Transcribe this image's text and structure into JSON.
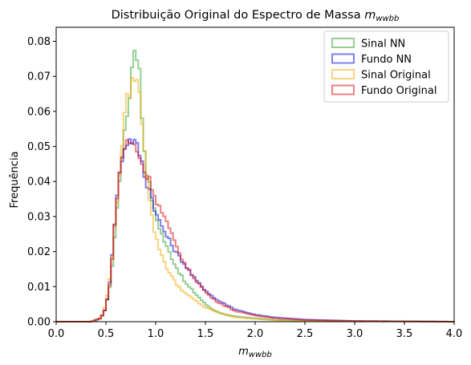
{
  "chart_data": {
    "type": "step-histogram",
    "title": "Distribuição Original do Espectro de Massa",
    "title_math": "m",
    "title_math_sub": "wwbb",
    "xlabel_main": "m",
    "xlabel_sub": "wwbb",
    "ylabel": "Frequência",
    "xlim": [
      0.0,
      4.0
    ],
    "ylim": [
      0.0,
      0.084
    ],
    "x_ticks": [
      "0.0",
      "0.5",
      "1.0",
      "1.5",
      "2.0",
      "2.5",
      "3.0",
      "3.5",
      "4.0"
    ],
    "y_ticks": [
      "0.00",
      "0.01",
      "0.02",
      "0.03",
      "0.04",
      "0.05",
      "0.06",
      "0.07",
      "0.08"
    ],
    "legend_position": "top-right",
    "series": [
      {
        "name": "Sinal NN",
        "color": "#2ca02c",
        "points": [
          [
            0.35,
            0.0
          ],
          [
            0.45,
            0.001
          ],
          [
            0.5,
            0.004
          ],
          [
            0.55,
            0.012
          ],
          [
            0.6,
            0.028
          ],
          [
            0.65,
            0.045
          ],
          [
            0.7,
            0.056
          ],
          [
            0.75,
            0.068
          ],
          [
            0.78,
            0.079
          ],
          [
            0.83,
            0.075
          ],
          [
            0.87,
            0.055
          ],
          [
            0.9,
            0.045
          ],
          [
            0.95,
            0.037
          ],
          [
            1.0,
            0.03
          ],
          [
            1.1,
            0.022
          ],
          [
            1.2,
            0.016
          ],
          [
            1.3,
            0.011
          ],
          [
            1.4,
            0.008
          ],
          [
            1.5,
            0.005
          ],
          [
            1.6,
            0.003
          ],
          [
            1.7,
            0.002
          ],
          [
            1.8,
            0.0015
          ],
          [
            2.0,
            0.001
          ],
          [
            2.2,
            0.0005
          ],
          [
            2.5,
            0.0002
          ],
          [
            3.0,
            0.0001
          ],
          [
            4.0,
            0.0
          ]
        ]
      },
      {
        "name": "Fundo NN",
        "color": "#0000dd",
        "points": [
          [
            0.35,
            0.0
          ],
          [
            0.45,
            0.001
          ],
          [
            0.5,
            0.004
          ],
          [
            0.55,
            0.014
          ],
          [
            0.6,
            0.033
          ],
          [
            0.65,
            0.045
          ],
          [
            0.7,
            0.051
          ],
          [
            0.75,
            0.052
          ],
          [
            0.8,
            0.051
          ],
          [
            0.85,
            0.047
          ],
          [
            0.9,
            0.04
          ],
          [
            0.95,
            0.037
          ],
          [
            1.0,
            0.031
          ],
          [
            1.1,
            0.025
          ],
          [
            1.2,
            0.02
          ],
          [
            1.3,
            0.016
          ],
          [
            1.4,
            0.012
          ],
          [
            1.5,
            0.009
          ],
          [
            1.6,
            0.0065
          ],
          [
            1.7,
            0.005
          ],
          [
            1.8,
            0.0035
          ],
          [
            2.0,
            0.002
          ],
          [
            2.2,
            0.0012
          ],
          [
            2.5,
            0.0006
          ],
          [
            3.0,
            0.0002
          ],
          [
            3.5,
            0.0001
          ],
          [
            4.0,
            0.0
          ]
        ]
      },
      {
        "name": "Sinal Original",
        "color": "#f5a800",
        "points": [
          [
            0.35,
            0.0
          ],
          [
            0.45,
            0.001
          ],
          [
            0.5,
            0.005
          ],
          [
            0.55,
            0.015
          ],
          [
            0.6,
            0.03
          ],
          [
            0.65,
            0.047
          ],
          [
            0.7,
            0.062
          ],
          [
            0.75,
            0.067
          ],
          [
            0.8,
            0.071
          ],
          [
            0.85,
            0.062
          ],
          [
            0.9,
            0.045
          ],
          [
            0.95,
            0.032
          ],
          [
            1.0,
            0.024
          ],
          [
            1.1,
            0.016
          ],
          [
            1.2,
            0.011
          ],
          [
            1.3,
            0.008
          ],
          [
            1.4,
            0.006
          ],
          [
            1.5,
            0.004
          ],
          [
            1.6,
            0.003
          ],
          [
            1.7,
            0.002
          ],
          [
            1.8,
            0.0012
          ],
          [
            2.0,
            0.0008
          ],
          [
            2.2,
            0.0004
          ],
          [
            2.5,
            0.0002
          ],
          [
            3.0,
            0.0001
          ],
          [
            4.0,
            0.0
          ]
        ]
      },
      {
        "name": "Fundo Original",
        "color": "#e00000",
        "points": [
          [
            0.35,
            0.0
          ],
          [
            0.45,
            0.001
          ],
          [
            0.5,
            0.004
          ],
          [
            0.55,
            0.013
          ],
          [
            0.6,
            0.032
          ],
          [
            0.65,
            0.046
          ],
          [
            0.7,
            0.051
          ],
          [
            0.75,
            0.051
          ],
          [
            0.8,
            0.05
          ],
          [
            0.85,
            0.046
          ],
          [
            0.9,
            0.042
          ],
          [
            0.95,
            0.04
          ],
          [
            1.0,
            0.035
          ],
          [
            1.1,
            0.029
          ],
          [
            1.2,
            0.022
          ],
          [
            1.3,
            0.016
          ],
          [
            1.4,
            0.012
          ],
          [
            1.5,
            0.0085
          ],
          [
            1.6,
            0.006
          ],
          [
            1.7,
            0.0045
          ],
          [
            1.8,
            0.003
          ],
          [
            2.0,
            0.0018
          ],
          [
            2.2,
            0.001
          ],
          [
            2.5,
            0.0005
          ],
          [
            3.0,
            0.0002
          ],
          [
            3.5,
            0.0001
          ],
          [
            4.0,
            0.0
          ]
        ]
      }
    ]
  }
}
